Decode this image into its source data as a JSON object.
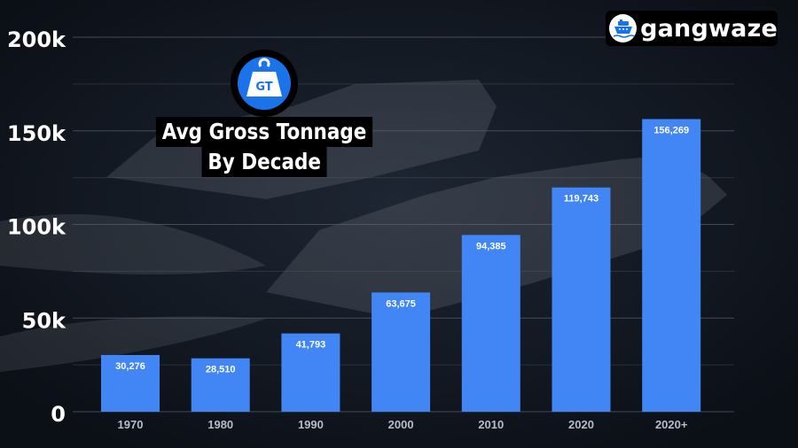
{
  "brand": {
    "name": "gangwaze",
    "icon": "ship-icon"
  },
  "title": {
    "badge": "GT",
    "line1": "Avg Gross Tonnage",
    "line2": "By Decade"
  },
  "colors": {
    "background": "#0f141d",
    "bar": "#4285f4",
    "grid": "#5a6170",
    "tick_y": "#ffffff",
    "tick_x": "#b7bcc6",
    "badge_blue": "#1a73e8"
  },
  "chart_data": {
    "type": "bar",
    "categories": [
      "1970",
      "1980",
      "1990",
      "2000",
      "2010",
      "2020",
      "2020+"
    ],
    "values": [
      30276,
      28510,
      41793,
      63675,
      94385,
      119743,
      156269
    ],
    "data_labels": [
      "30,276",
      "28,510",
      "41,793",
      "63,675",
      "94,385",
      "119,743",
      "156,269"
    ],
    "ylim": [
      0,
      200000
    ],
    "y_ticks": [
      0,
      50000,
      100000,
      150000,
      200000
    ],
    "y_tick_labels": [
      "0",
      "50k",
      "100k",
      "150k",
      "200k"
    ],
    "grid": true,
    "legend": "none"
  }
}
